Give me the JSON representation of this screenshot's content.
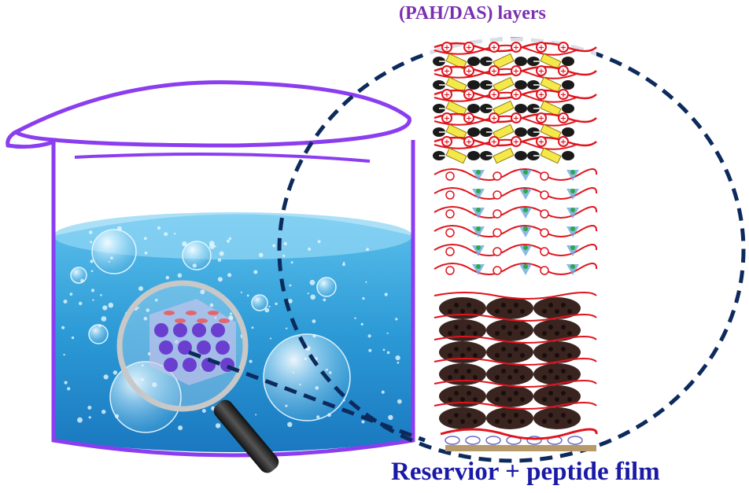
{
  "labels": {
    "top": "(PAH/DAS) layers",
    "bottom": "Reservior + peptide film"
  },
  "colors": {
    "beaker": "#8b3df0",
    "water": "#3aa6dc",
    "dash": "#0d2a5c",
    "polymer": "#e0141e",
    "das": "#f5e84a",
    "particle": "#3a2420",
    "substrate": "#b79a6a",
    "top_label": "#7a2fb0",
    "bottom_label": "#1a1aa6"
  }
}
